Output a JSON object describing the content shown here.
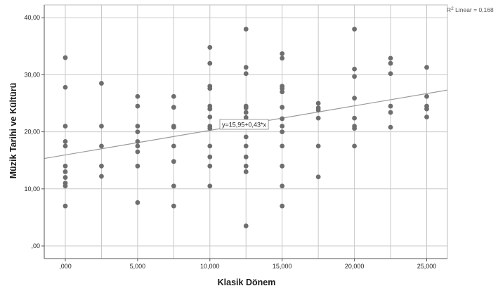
{
  "chart_data": {
    "type": "scatter",
    "title": "",
    "xlabel": "Klasik Dönem",
    "ylabel": "Müzik Tarihi ve Kültürü",
    "xlim": [
      -1.3,
      26.3
    ],
    "ylim": [
      -2.5,
      42.0
    ],
    "xticks": [
      0,
      5,
      10,
      15,
      20,
      25
    ],
    "xtick_labels": [
      ",000",
      "5,000",
      "10,000",
      "15,000",
      "20,000",
      "25,000"
    ],
    "yticks": [
      0,
      10,
      20,
      30,
      40
    ],
    "ytick_labels": [
      ",00",
      "10,00",
      "20,00",
      "30,00",
      "40,00"
    ],
    "x_gridlines": [
      0,
      2.5,
      5,
      7.5,
      10,
      12.5,
      15,
      17.5,
      20,
      22.5,
      25
    ],
    "y_gridlines": [
      0,
      10,
      20,
      30,
      40
    ],
    "grid": true,
    "point_color": "#6e6e6e",
    "fit_line_color": "#9a9a9a",
    "points": [
      [
        0,
        33
      ],
      [
        0,
        27.8
      ],
      [
        0,
        21
      ],
      [
        0,
        18.3
      ],
      [
        0,
        17.5
      ],
      [
        0,
        14
      ],
      [
        0,
        13
      ],
      [
        0,
        12
      ],
      [
        0,
        11
      ],
      [
        0,
        10.5
      ],
      [
        0,
        7
      ],
      [
        2.5,
        28.5
      ],
      [
        2.5,
        21
      ],
      [
        2.5,
        17.5
      ],
      [
        2.5,
        14
      ],
      [
        2.5,
        12.2
      ],
      [
        5,
        26.2
      ],
      [
        5,
        24.5
      ],
      [
        5,
        21
      ],
      [
        5,
        20
      ],
      [
        5,
        18.3
      ],
      [
        5,
        17.5
      ],
      [
        5,
        16.5
      ],
      [
        5,
        14
      ],
      [
        5,
        7.6
      ],
      [
        7.5,
        26.2
      ],
      [
        7.5,
        24.3
      ],
      [
        7.5,
        21
      ],
      [
        7.5,
        20.8
      ],
      [
        7.5,
        17.5
      ],
      [
        7.5,
        14.8
      ],
      [
        7.5,
        10.5
      ],
      [
        7.5,
        7
      ],
      [
        10,
        34.8
      ],
      [
        10,
        32
      ],
      [
        10,
        28
      ],
      [
        10,
        27.6
      ],
      [
        10,
        24.5
      ],
      [
        10,
        24
      ],
      [
        10,
        22.6
      ],
      [
        10,
        21
      ],
      [
        10,
        20.6
      ],
      [
        10,
        17.5
      ],
      [
        10,
        15.6
      ],
      [
        10,
        14
      ],
      [
        10,
        10.5
      ],
      [
        12.5,
        38
      ],
      [
        12.5,
        31.3
      ],
      [
        12.5,
        30.2
      ],
      [
        12.5,
        24.5
      ],
      [
        12.5,
        24.2
      ],
      [
        12.5,
        23.4
      ],
      [
        12.5,
        22.5
      ],
      [
        12.5,
        19.1
      ],
      [
        12.5,
        17.5
      ],
      [
        12.5,
        15.6
      ],
      [
        12.5,
        14
      ],
      [
        12.5,
        13
      ],
      [
        12.5,
        3.5
      ],
      [
        15,
        33.7
      ],
      [
        15,
        32.9
      ],
      [
        15,
        28
      ],
      [
        15,
        27.6
      ],
      [
        15,
        27
      ],
      [
        15,
        24.3
      ],
      [
        15,
        22.3
      ],
      [
        15,
        21
      ],
      [
        15,
        20
      ],
      [
        15,
        17.5
      ],
      [
        15,
        14
      ],
      [
        15,
        10.5
      ],
      [
        15,
        7
      ],
      [
        17.5,
        25
      ],
      [
        17.5,
        24.2
      ],
      [
        17.5,
        23.8
      ],
      [
        17.5,
        22.4
      ],
      [
        17.5,
        17.5
      ],
      [
        17.5,
        12.1
      ],
      [
        20,
        38
      ],
      [
        20,
        31
      ],
      [
        20,
        29.7
      ],
      [
        20,
        25.9
      ],
      [
        20,
        22.4
      ],
      [
        20,
        21
      ],
      [
        20,
        20.6
      ],
      [
        20,
        17.5
      ],
      [
        22.5,
        32.9
      ],
      [
        22.5,
        32
      ],
      [
        22.5,
        30.2
      ],
      [
        22.5,
        24.5
      ],
      [
        22.5,
        23.4
      ],
      [
        22.5,
        20.8
      ],
      [
        25,
        31.3
      ],
      [
        25,
        26.2
      ],
      [
        25,
        24.5
      ],
      [
        25,
        24
      ],
      [
        25,
        22.6
      ]
    ],
    "fit_line": {
      "intercept": 15.95,
      "slope": 0.43
    },
    "fit_equation": "y=15,95+0,43*x",
    "r2_prefix": "R",
    "r2_sup": "2",
    "r2_text": " Linear = 0,168"
  }
}
